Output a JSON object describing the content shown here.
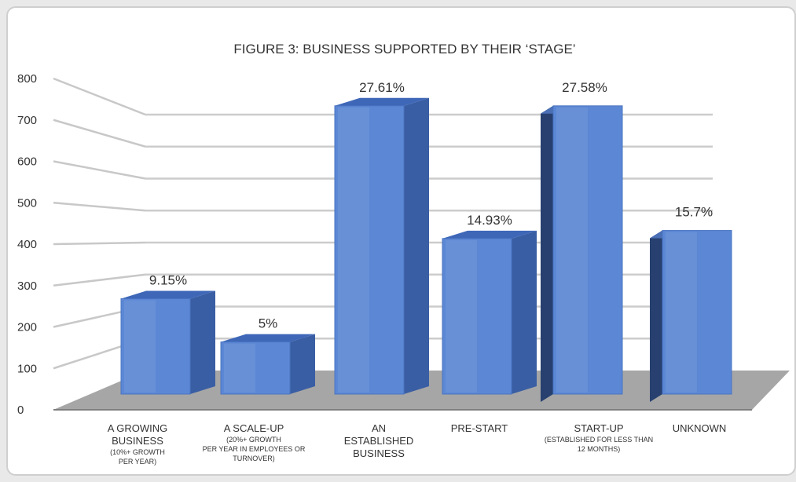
{
  "chart_data": {
    "type": "bar",
    "title": "FIGURE 3: BUSINESS SUPPORTED BY THEIR ‘STAGE’",
    "ylim": [
      0,
      800
    ],
    "yticks": [
      "0",
      "100",
      "200",
      "300",
      "400",
      "500",
      "600",
      "700",
      "800"
    ],
    "grid": true,
    "bar_color": "#5b87d4",
    "categories": [
      {
        "label": [
          "A GROWING",
          "BUSINESS"
        ],
        "sub": [
          "(10%+ GROWTH",
          "PER YEAR)"
        ]
      },
      {
        "label": [
          "A SCALE-UP"
        ],
        "sub": [
          "(20%+ GROWTH",
          "PER YEAR IN EMPLOYEES OR",
          "TURNOVER)"
        ]
      },
      {
        "label": [
          "AN",
          "ESTABLISHED",
          "BUSINESS"
        ],
        "sub": []
      },
      {
        "label": [
          "PRE-START"
        ],
        "sub": []
      },
      {
        "label": [
          "START-UP"
        ],
        "sub": [
          "(ESTABLISHED FOR LESS THAN",
          "12 MONTHS)"
        ]
      },
      {
        "label": [
          "UNKNOWN"
        ],
        "sub": []
      }
    ],
    "values": [
      225,
      123,
      680,
      367,
      680,
      386
    ],
    "data_labels": [
      "9.15%",
      "5%",
      "27.61%",
      "14.93%",
      "27.58%",
      "15.7%"
    ]
  }
}
